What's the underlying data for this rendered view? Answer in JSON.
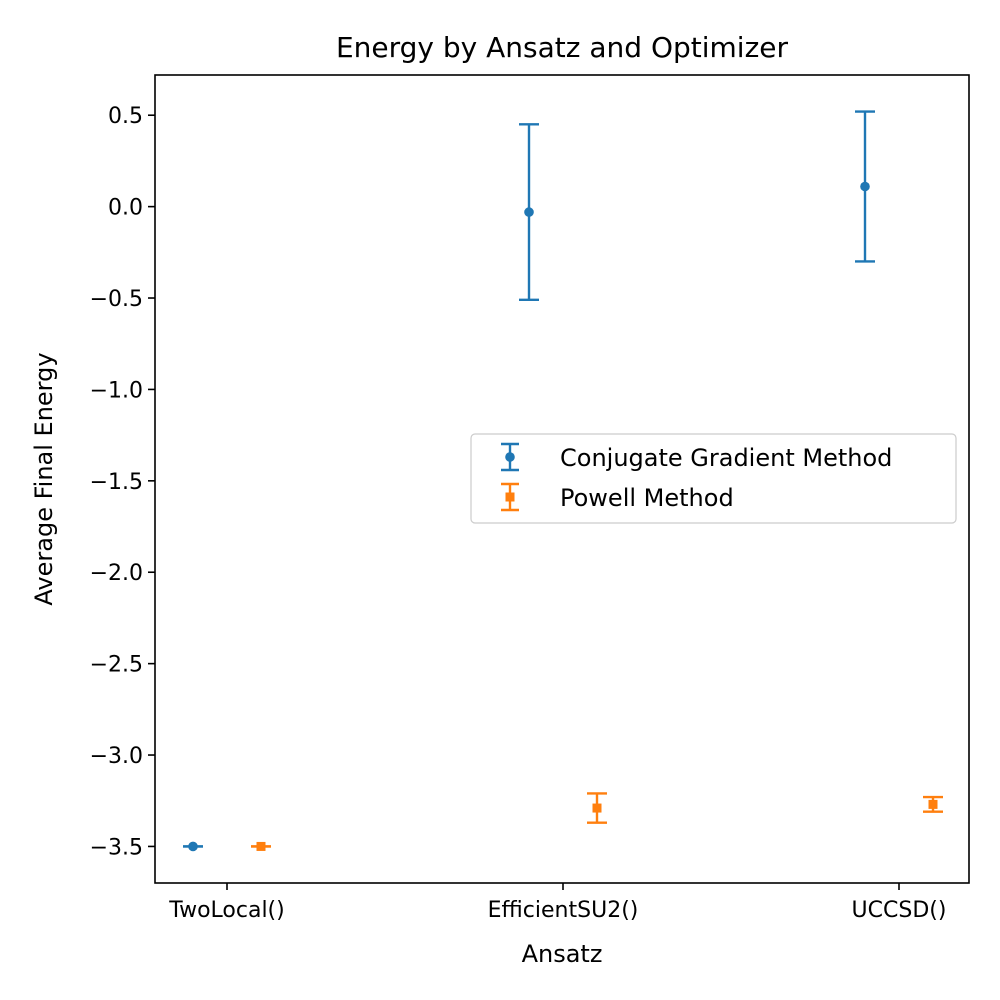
{
  "chart_data": {
    "type": "errorbar",
    "title": "Energy by Ansatz and Optimizer",
    "xlabel": "Ansatz",
    "ylabel": "Average Final Energy",
    "categories": [
      "TwoLocal()",
      "EfficientSU2()",
      "UCCSD()"
    ],
    "ylim": [
      -3.7,
      0.72
    ],
    "yticks": [
      0.5,
      0.0,
      -0.5,
      -1.0,
      -1.5,
      -2.0,
      -2.5,
      -3.0,
      -3.5
    ],
    "ytick_labels": [
      "0.5",
      "0.0",
      "−0.5",
      "−1.0",
      "−1.5",
      "−2.0",
      "−2.5",
      "−3.0",
      "−3.5"
    ],
    "grid": false,
    "legend_position": "center-right",
    "series": [
      {
        "name": "Conjugate Gradient Method",
        "color": "#1f77b4",
        "marker": "circle",
        "values": [
          -3.5,
          -0.03,
          0.11
        ],
        "errors": [
          0.0,
          0.48,
          0.41
        ]
      },
      {
        "name": "Powell Method",
        "color": "#ff7f0e",
        "marker": "square",
        "values": [
          -3.5,
          -3.29,
          -3.27
        ],
        "errors": [
          0.0,
          0.08,
          0.04
        ]
      }
    ]
  }
}
